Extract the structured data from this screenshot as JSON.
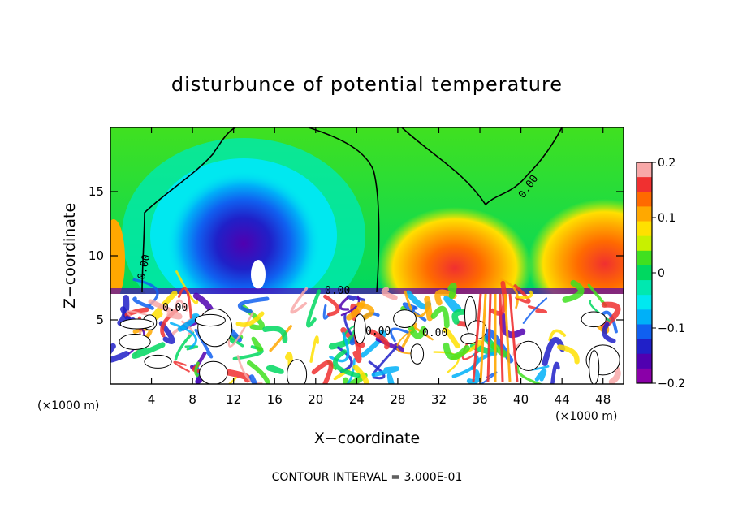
{
  "chart_data": {
    "type": "heatmap",
    "title": "disturbunce of potential temperature",
    "xlabel": "X−coordinate",
    "ylabel": "Z−coordinate",
    "x_unit_left": "(×1000 m)",
    "x_unit_right": "(×1000 m)",
    "xlim": [
      0,
      50
    ],
    "ylim": [
      0,
      20
    ],
    "x_ticks": [
      4,
      8,
      12,
      16,
      20,
      24,
      28,
      32,
      36,
      40,
      44,
      48
    ],
    "x_tick_labels": [
      "4",
      "8",
      "12",
      "16",
      "20",
      "24",
      "28",
      "32",
      "36",
      "40",
      "44",
      "48"
    ],
    "y_ticks": [
      5,
      10,
      15
    ],
    "y_tick_labels": [
      "5",
      "10",
      "15"
    ],
    "colorbar": {
      "range": [
        -0.2,
        0.2
      ],
      "tick_labels": [
        "0.2",
        "0.1",
        "0",
        "−0.1",
        "−0.2"
      ],
      "tick_values": [
        0.2,
        0.1,
        0,
        -0.1,
        -0.2
      ],
      "colors": [
        "#f8a8a8",
        "#f03030",
        "#ff6a00",
        "#ffa800",
        "#ffe000",
        "#c8f000",
        "#40e020",
        "#00d860",
        "#00e8b0",
        "#00e8f0",
        "#00b0f8",
        "#1060f0",
        "#2020c8",
        "#5000b0",
        "#8a00a8"
      ]
    },
    "contour_labels": [
      "0.00",
      "0.00",
      "0.00",
      "0.00",
      "0.00",
      "0.00"
    ],
    "footer": "CONTOUR INTERVAL = 3.000E-01"
  }
}
